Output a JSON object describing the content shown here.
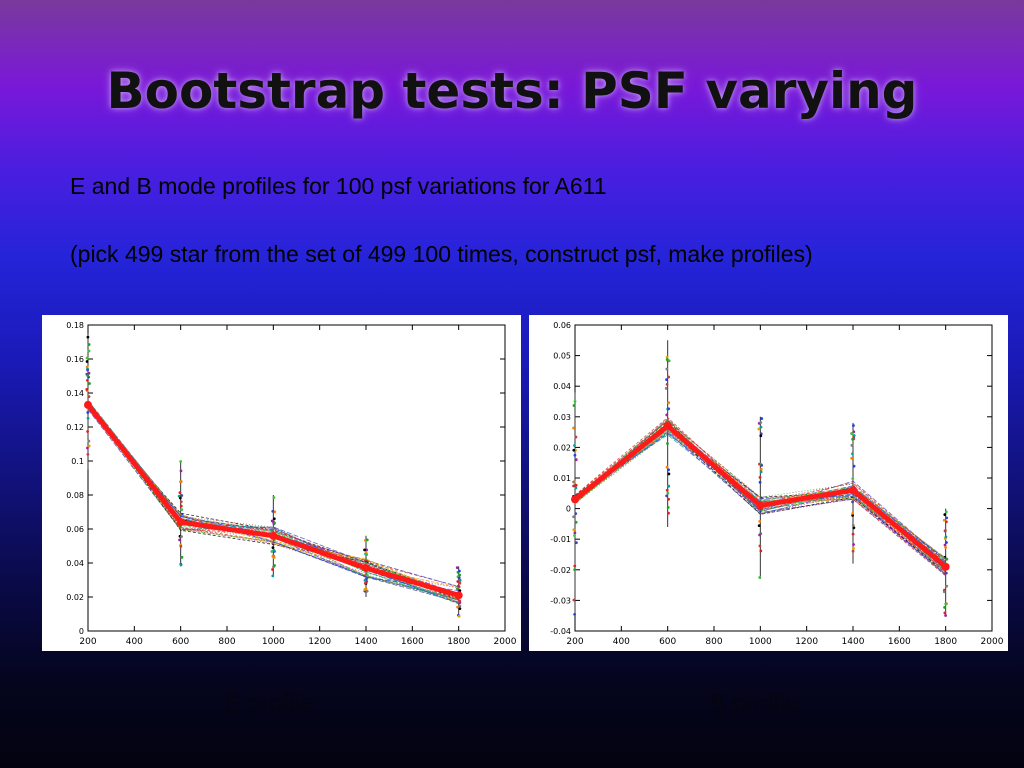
{
  "title": "Bootstrap tests: PSF varying",
  "line1": "E and B mode profiles for 100 psf variations for A611",
  "line2": "(pick 499 star from the set of 499 100 times, construct psf, make profiles)",
  "captions": {
    "left": "E profile",
    "right": "B profile"
  },
  "chart_data": [
    {
      "type": "line",
      "title": "",
      "xlabel": "",
      "ylabel": "",
      "xlim": [
        200,
        2000
      ],
      "ylim": [
        0,
        0.18
      ],
      "x_ticks": [
        "200",
        "400",
        "600",
        "800",
        "1000",
        "1200",
        "1400",
        "1600",
        "1800",
        "2000"
      ],
      "y_ticks": [
        "0",
        "0.02",
        "0.04",
        "0.06",
        "0.08",
        "0.1",
        "0.12",
        "0.14",
        "0.16",
        "0.18"
      ],
      "x": [
        200,
        600,
        1000,
        1400,
        1800
      ],
      "series": [
        {
          "values": [
            0.133,
            0.064,
            0.056,
            0.037,
            0.021
          ]
        }
      ],
      "error_range": {
        "low": [
          0.095,
          0.038,
          0.032,
          0.02,
          0.008
        ],
        "high": [
          0.175,
          0.1,
          0.08,
          0.056,
          0.038
        ]
      },
      "highlight_color": "#ff1a1a"
    },
    {
      "type": "line",
      "title": "",
      "xlabel": "",
      "ylabel": "",
      "xlim": [
        200,
        2000
      ],
      "ylim": [
        -0.04,
        0.06
      ],
      "x_ticks": [
        "200",
        "400",
        "600",
        "800",
        "1000",
        "1200",
        "1400",
        "1600",
        "1800",
        "2000"
      ],
      "y_ticks": [
        "-0.04",
        "-0.03",
        "-0.02",
        "-0.01",
        "0",
        "0.01",
        "0.02",
        "0.03",
        "0.04",
        "0.05",
        "0.06"
      ],
      "x": [
        200,
        600,
        1000,
        1400,
        1800
      ],
      "series": [
        {
          "values": [
            0.003,
            0.027,
            0.001,
            0.006,
            -0.019
          ]
        }
      ],
      "error_range": {
        "low": [
          -0.035,
          -0.006,
          -0.023,
          -0.018,
          -0.035
        ],
        "high": [
          0.038,
          0.055,
          0.03,
          0.028,
          0.0
        ]
      },
      "highlight_color": "#ff1a1a"
    }
  ]
}
